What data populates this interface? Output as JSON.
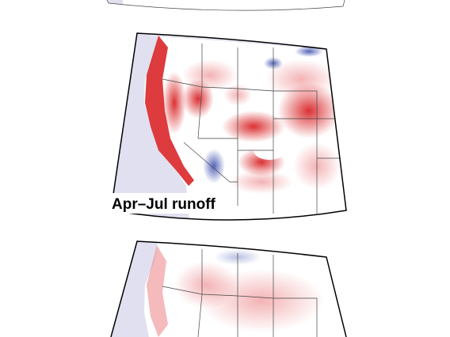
{
  "map": {
    "label": "Apr–Jul runoff"
  }
}
